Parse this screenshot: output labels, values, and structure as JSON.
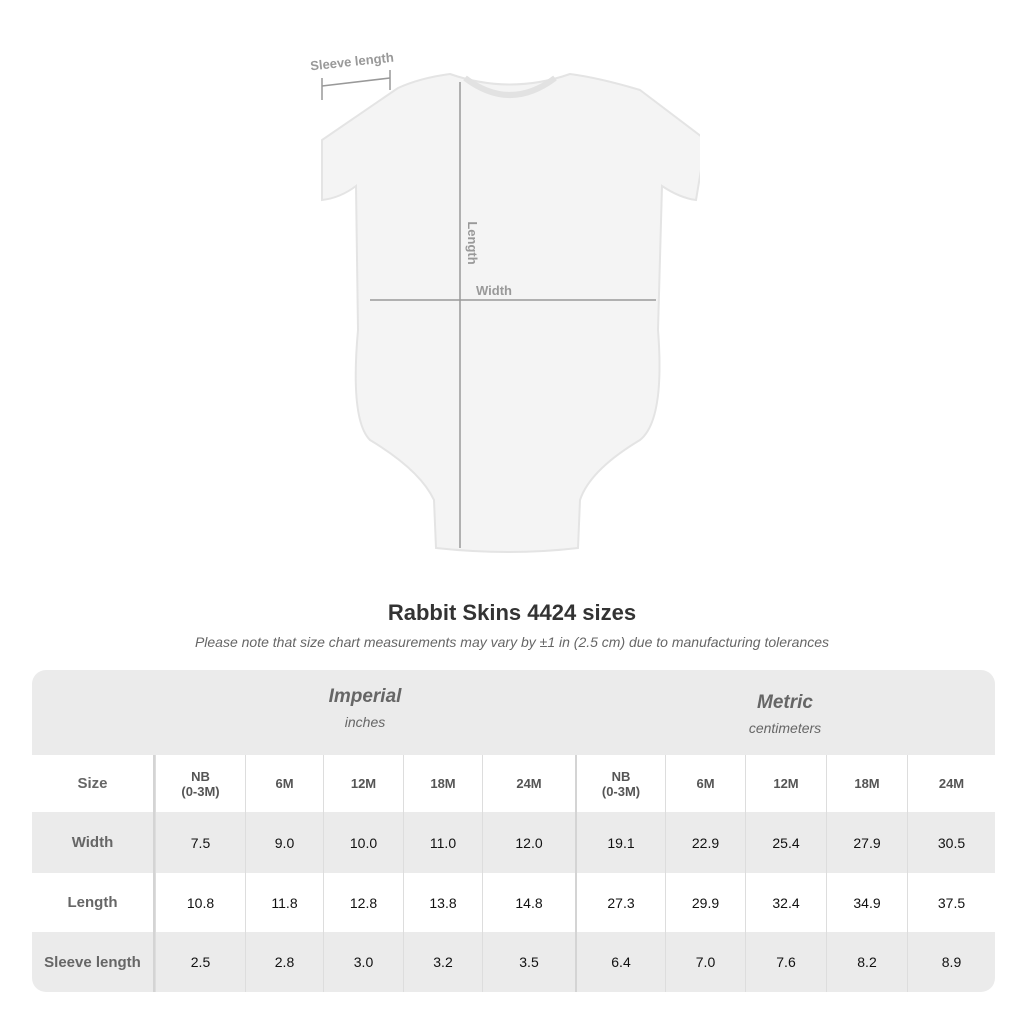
{
  "diagram": {
    "sleeve_label": "Sleeve length",
    "length_label": "Length",
    "width_label": "Width"
  },
  "title": "Rabbit Skins 4424 sizes",
  "note": "Please note that size chart measurements may vary by ±1 in (2.5 cm) due to manufacturing tolerances",
  "groups": [
    {
      "name": "Imperial",
      "unit": "inches"
    },
    {
      "name": "Metric",
      "unit": "centimeters"
    }
  ],
  "size_label": "Size",
  "sizes": [
    "NB\n(0-3M)",
    "6M",
    "12M",
    "18M",
    "24M",
    "NB\n(0-3M)",
    "6M",
    "12M",
    "18M",
    "24M"
  ],
  "rows": [
    {
      "label": "Width",
      "values": [
        "7.5",
        "9.0",
        "10.0",
        "11.0",
        "12.0",
        "19.1",
        "22.9",
        "25.4",
        "27.9",
        "30.5"
      ]
    },
    {
      "label": "Length",
      "values": [
        "10.8",
        "11.8",
        "12.8",
        "13.8",
        "14.8",
        "27.3",
        "29.9",
        "32.4",
        "34.9",
        "37.5"
      ]
    },
    {
      "label": "Sleeve length",
      "values": [
        "2.5",
        "2.8",
        "3.0",
        "3.2",
        "3.5",
        "6.4",
        "7.0",
        "7.6",
        "8.2",
        "8.9"
      ]
    }
  ]
}
